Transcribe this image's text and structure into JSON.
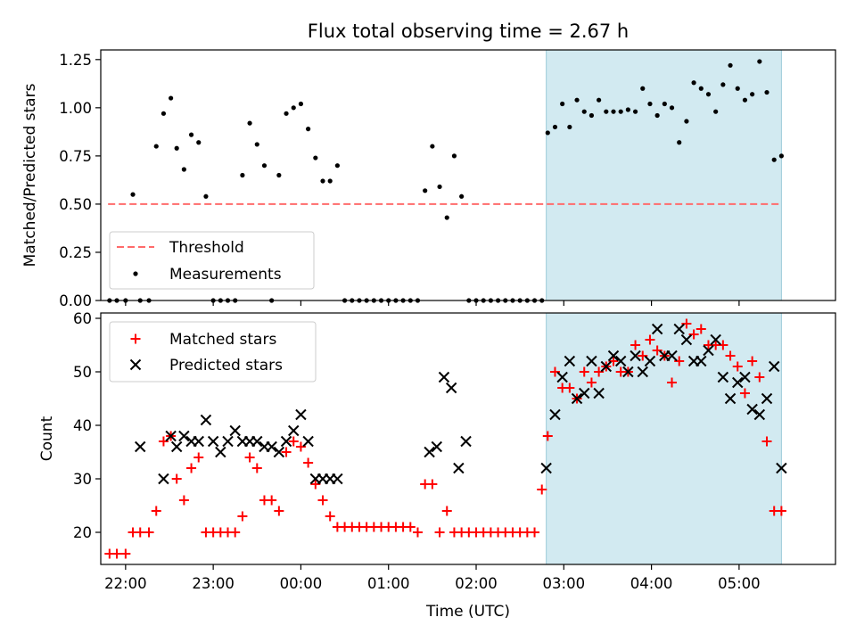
{
  "title": "Flux total observing time = 2.67 h",
  "colors": {
    "threshold": "#ff6b6b",
    "measurements": "#000000",
    "matched": "#ff0000",
    "predicted": "#000000",
    "highlight": "#add8e6"
  },
  "chart_data": [
    {
      "type": "scatter",
      "ylabel": "Matched/Predicted stars",
      "ylim": [
        0,
        1.3
      ],
      "yticks": [
        0.0,
        0.25,
        0.5,
        0.75,
        1.0,
        1.25
      ],
      "ytick_labels": [
        "0.00",
        "0.25",
        "0.50",
        "0.75",
        "1.00",
        "1.25"
      ],
      "xlim": [
        "21:43",
        "06:06"
      ],
      "highlight_span": [
        "02:48",
        "05:29"
      ],
      "legend_position": "lower-left",
      "series": [
        {
          "name": "Threshold",
          "kind": "line",
          "style": "dashed",
          "x": [
            "21:48",
            "05:29"
          ],
          "y": [
            0.5,
            0.5
          ]
        },
        {
          "name": "Measurements",
          "kind": "scatter",
          "x": [
            "21:49",
            "21:54",
            "22:00",
            "22:05",
            "22:10",
            "22:16",
            "22:21",
            "22:26",
            "22:31",
            "22:35",
            "22:40",
            "22:45",
            "22:50",
            "22:55",
            "23:00",
            "23:05",
            "23:10",
            "23:15",
            "23:20",
            "23:25",
            "23:30",
            "23:35",
            "23:40",
            "23:45",
            "23:50",
            "23:55",
            "00:00",
            "00:05",
            "00:10",
            "00:15",
            "00:20",
            "00:25",
            "00:30",
            "00:35",
            "00:40",
            "00:45",
            "00:50",
            "00:55",
            "01:00",
            "01:05",
            "01:10",
            "01:15",
            "01:20",
            "01:25",
            "01:30",
            "01:35",
            "01:40",
            "01:45",
            "01:50",
            "01:55",
            "02:00",
            "02:05",
            "02:10",
            "02:15",
            "02:20",
            "02:25",
            "02:30",
            "02:35",
            "02:40",
            "02:45",
            "02:49",
            "02:54",
            "02:59",
            "03:04",
            "03:09",
            "03:14",
            "03:19",
            "03:24",
            "03:29",
            "03:34",
            "03:39",
            "03:44",
            "03:49",
            "03:54",
            "03:59",
            "04:04",
            "04:09",
            "04:14",
            "04:19",
            "04:24",
            "04:29",
            "04:34",
            "04:39",
            "04:44",
            "04:49",
            "04:54",
            "04:59",
            "05:04",
            "05:09",
            "05:14",
            "05:19",
            "05:24",
            "05:29"
          ],
          "y": [
            0,
            0,
            0,
            0.55,
            0,
            0,
            0.8,
            0.97,
            1.05,
            0.79,
            0.68,
            0.86,
            0.82,
            0.54,
            0,
            0,
            0,
            0,
            0.65,
            0.92,
            0.81,
            0.7,
            0,
            0.65,
            0.97,
            1.0,
            1.02,
            0.89,
            0.74,
            0.62,
            0.62,
            0.7,
            0,
            0,
            0,
            0,
            0,
            0,
            0,
            0,
            0,
            0,
            0,
            0.57,
            0.8,
            0.59,
            0.43,
            0.75,
            0.54,
            0,
            0,
            0,
            0,
            0,
            0,
            0,
            0,
            0,
            0,
            0,
            0.87,
            0.9,
            1.02,
            0.9,
            1.04,
            0.98,
            0.96,
            1.04,
            0.98,
            0.98,
            0.98,
            0.99,
            0.98,
            1.1,
            1.02,
            0.96,
            1.02,
            1.0,
            0.82,
            0.93,
            1.13,
            1.1,
            1.07,
            0.98,
            1.12,
            1.22,
            1.1,
            1.04,
            1.07,
            1.24,
            1.08,
            0.73,
            0.75
          ]
        }
      ]
    },
    {
      "type": "scatter",
      "ylabel": "Count",
      "xlabel": "Time (UTC)",
      "ylim": [
        14,
        61
      ],
      "yticks": [
        20,
        30,
        40,
        50,
        60
      ],
      "ytick_labels": [
        "20",
        "30",
        "40",
        "50",
        "60"
      ],
      "xlim": [
        "21:43",
        "06:06"
      ],
      "xticks": [
        "22:00",
        "23:00",
        "00:00",
        "01:00",
        "02:00",
        "03:00",
        "04:00",
        "05:00"
      ],
      "xtick_labels": [
        "22:00",
        "23:00",
        "00:00",
        "01:00",
        "02:00",
        "03:00",
        "04:00",
        "05:00"
      ],
      "highlight_span": [
        "02:48",
        "05:29"
      ],
      "legend_position": "upper-left",
      "series": [
        {
          "name": "Matched stars",
          "marker": "+",
          "x": [
            "21:49",
            "21:54",
            "22:00",
            "22:05",
            "22:10",
            "22:16",
            "22:21",
            "22:26",
            "22:31",
            "22:35",
            "22:40",
            "22:45",
            "22:50",
            "22:55",
            "23:00",
            "23:05",
            "23:10",
            "23:15",
            "23:20",
            "23:25",
            "23:30",
            "23:35",
            "23:40",
            "23:45",
            "23:50",
            "23:55",
            "00:00",
            "00:05",
            "00:10",
            "00:15",
            "00:20",
            "00:25",
            "00:30",
            "00:35",
            "00:40",
            "00:45",
            "00:50",
            "00:55",
            "01:00",
            "01:05",
            "01:10",
            "01:15",
            "01:20",
            "01:25",
            "01:30",
            "01:35",
            "01:40",
            "01:45",
            "01:50",
            "01:55",
            "02:00",
            "02:05",
            "02:10",
            "02:15",
            "02:20",
            "02:25",
            "02:30",
            "02:35",
            "02:40",
            "02:45",
            "02:49",
            "02:54",
            "02:59",
            "03:04",
            "03:09",
            "03:14",
            "03:19",
            "03:24",
            "03:29",
            "03:34",
            "03:39",
            "03:44",
            "03:49",
            "03:54",
            "03:59",
            "04:04",
            "04:09",
            "04:14",
            "04:19",
            "04:24",
            "04:29",
            "04:34",
            "04:39",
            "04:44",
            "04:49",
            "04:54",
            "04:59",
            "05:04",
            "05:09",
            "05:14",
            "05:19",
            "05:24",
            "05:29"
          ],
          "y": [
            16,
            16,
            16,
            20,
            20,
            20,
            24,
            37,
            38,
            30,
            26,
            32,
            34,
            20,
            20,
            20,
            20,
            20,
            23,
            34,
            32,
            26,
            26,
            24,
            35,
            37,
            36,
            33,
            29,
            26,
            23,
            21,
            21,
            21,
            21,
            21,
            21,
            21,
            21,
            21,
            21,
            21,
            20,
            29,
            29,
            20,
            24,
            20,
            20,
            20,
            20,
            20,
            20,
            20,
            20,
            20,
            20,
            20,
            20,
            28,
            38,
            50,
            47,
            47,
            45,
            50,
            48,
            50,
            51,
            52,
            50,
            50,
            55,
            53,
            56,
            54,
            53,
            48,
            52,
            59,
            57,
            58,
            55,
            55,
            55,
            53,
            51,
            46,
            52,
            49,
            37,
            24,
            24
          ]
        },
        {
          "name": "Predicted stars",
          "marker": "x",
          "x": [
            "22:10",
            "22:26",
            "22:31",
            "22:35",
            "22:40",
            "22:45",
            "22:50",
            "22:55",
            "23:00",
            "23:05",
            "23:10",
            "23:15",
            "23:20",
            "23:25",
            "23:30",
            "23:35",
            "23:40",
            "23:45",
            "23:50",
            "23:55",
            "00:00",
            "00:05",
            "00:10",
            "00:15",
            "00:20",
            "00:25",
            "01:28",
            "01:33",
            "01:38",
            "01:43",
            "01:48",
            "01:53",
            "02:48",
            "02:54",
            "02:59",
            "03:04",
            "03:09",
            "03:14",
            "03:19",
            "03:24",
            "03:29",
            "03:34",
            "03:39",
            "03:44",
            "03:49",
            "03:54",
            "03:59",
            "04:04",
            "04:09",
            "04:14",
            "04:19",
            "04:24",
            "04:29",
            "04:34",
            "04:39",
            "04:44",
            "04:49",
            "04:54",
            "04:59",
            "05:04",
            "05:09",
            "05:14",
            "05:19",
            "05:24",
            "05:29"
          ],
          "y": [
            36,
            30,
            38,
            36,
            38,
            37,
            37,
            41,
            37,
            35,
            37,
            39,
            37,
            37,
            37,
            36,
            36,
            35,
            37,
            39,
            42,
            37,
            30,
            30,
            30,
            30,
            35,
            36,
            49,
            47,
            32,
            37,
            32,
            42,
            49,
            52,
            45,
            46,
            52,
            46,
            51,
            53,
            52,
            50,
            53,
            50,
            52,
            58,
            53,
            53,
            58,
            56,
            52,
            52,
            54,
            56,
            49,
            45,
            48,
            49,
            43,
            42,
            45,
            51,
            32
          ]
        }
      ]
    }
  ]
}
